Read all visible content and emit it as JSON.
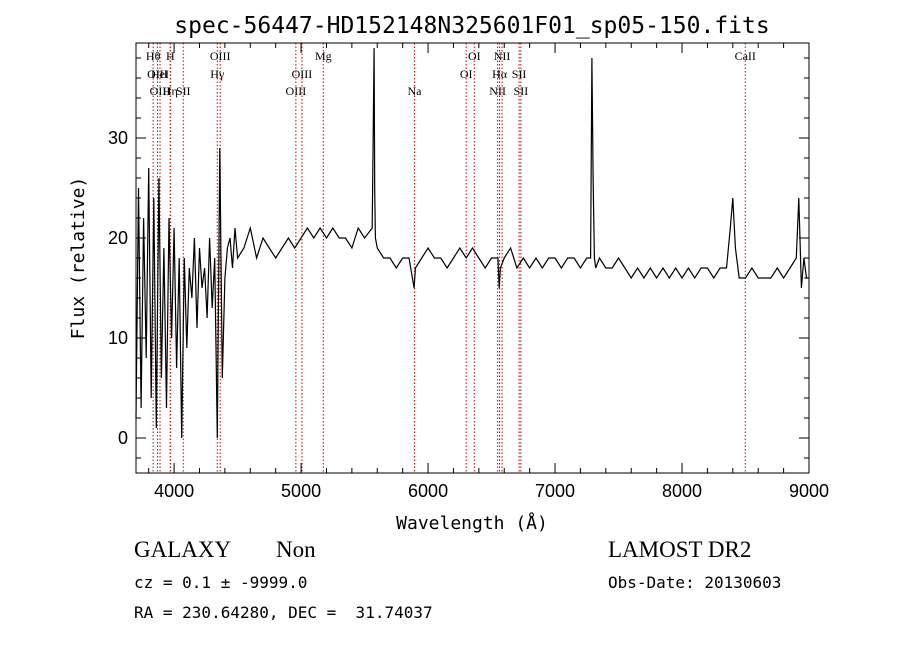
{
  "chart_data": {
    "type": "line",
    "title": "spec-56447-HD152148N325601F01_sp05-150.fits",
    "xlabel": "Wavelength (Å)",
    "ylabel": "Flux (relative)",
    "xlim": [
      3700,
      9000
    ],
    "ylim": [
      -3.5,
      39.5
    ],
    "xticks": [
      4000,
      5000,
      6000,
      7000,
      8000,
      9000
    ],
    "yticks": [
      0,
      10,
      20,
      30
    ],
    "grid": false,
    "series": [
      {
        "line_color": "#000000",
        "x": [
          3700,
          3720,
          3740,
          3760,
          3780,
          3800,
          3820,
          3840,
          3860,
          3880,
          3900,
          3920,
          3940,
          3960,
          3980,
          4000,
          4020,
          4040,
          4060,
          4080,
          4100,
          4120,
          4140,
          4160,
          4180,
          4200,
          4220,
          4240,
          4260,
          4280,
          4300,
          4320,
          4340,
          4360,
          4380,
          4400,
          4420,
          4440,
          4460,
          4480,
          4500,
          4550,
          4600,
          4650,
          4700,
          4750,
          4800,
          4850,
          4900,
          4950,
          5000,
          5050,
          5100,
          5150,
          5200,
          5250,
          5300,
          5350,
          5400,
          5450,
          5500,
          5560,
          5575,
          5580,
          5585,
          5600,
          5650,
          5700,
          5750,
          5800,
          5850,
          5890,
          5900,
          5950,
          6000,
          6050,
          6100,
          6150,
          6200,
          6250,
          6300,
          6350,
          6400,
          6450,
          6500,
          6550,
          6560,
          6570,
          6600,
          6650,
          6700,
          6750,
          6800,
          6850,
          6900,
          6950,
          7000,
          7050,
          7100,
          7150,
          7200,
          7250,
          7280,
          7290,
          7300,
          7310,
          7320,
          7350,
          7400,
          7450,
          7500,
          7550,
          7600,
          7650,
          7700,
          7750,
          7800,
          7850,
          7900,
          7950,
          8000,
          8050,
          8100,
          8150,
          8200,
          8250,
          8300,
          8350,
          8380,
          8400,
          8420,
          8450,
          8500,
          8550,
          8600,
          8650,
          8700,
          8750,
          8800,
          8850,
          8900,
          8920,
          8940,
          8960,
          8980,
          9000
        ],
        "y": [
          2,
          25,
          3,
          22,
          8,
          27,
          4,
          24,
          1,
          26,
          6,
          19,
          3,
          22,
          10,
          21,
          7,
          18,
          0,
          18,
          9,
          17,
          14,
          20,
          11,
          19,
          15,
          17,
          12,
          20,
          13,
          18,
          0,
          29,
          6,
          16,
          19,
          20,
          17,
          21,
          18,
          19,
          21,
          18,
          20,
          19,
          18,
          19,
          20,
          19,
          20,
          21,
          20,
          21,
          20,
          21,
          20,
          20,
          19,
          21,
          20,
          21,
          39,
          25,
          20,
          19,
          18,
          18,
          17,
          18,
          18,
          15,
          17,
          18,
          19,
          18,
          18,
          17,
          18,
          19,
          18,
          19,
          18,
          17,
          18,
          18,
          15,
          17,
          18,
          19,
          17,
          18,
          17,
          18,
          17,
          18,
          18,
          17,
          18,
          18,
          17,
          18,
          18,
          38,
          26,
          18,
          17,
          18,
          17,
          17,
          18,
          17,
          16,
          17,
          16,
          17,
          16,
          17,
          16,
          17,
          16,
          17,
          16,
          17,
          17,
          16,
          17,
          17,
          21,
          24,
          19,
          16,
          16,
          17,
          16,
          16,
          16,
          17,
          16,
          17,
          18,
          24,
          15,
          18,
          16,
          16
        ]
      }
    ],
    "emission_lines": [
      {
        "wave": 3835,
        "label": "Hθ",
        "row": 0
      },
      {
        "wave": 3869,
        "label": "OIII",
        "row": 1
      },
      {
        "wave": 3889,
        "label": "HeI",
        "row": 1
      },
      {
        "wave": 3889,
        "label": "OIII",
        "row": 2
      },
      {
        "wave": 3970,
        "label": "H",
        "row": 0
      },
      {
        "wave": 3970,
        "label": "Hη",
        "row": 2
      },
      {
        "wave": 4072,
        "label": "SII",
        "row": 2
      },
      {
        "wave": 4340,
        "label": "Hγ",
        "row": 1
      },
      {
        "wave": 4363,
        "label": "OIII",
        "row": 0
      },
      {
        "wave": 4959,
        "label": "OIII",
        "row": 2
      },
      {
        "wave": 5007,
        "label": "OIII",
        "row": 1
      },
      {
        "wave": 5175,
        "label": "Mg",
        "row": 0
      },
      {
        "wave": 5893,
        "label": "Na",
        "row": 2
      },
      {
        "wave": 6300,
        "label": "OI",
        "row": 1
      },
      {
        "wave": 6364,
        "label": "OI",
        "row": 0
      },
      {
        "wave": 6548,
        "label": "NII",
        "row": 2
      },
      {
        "wave": 6563,
        "label": "Hα",
        "row": 1
      },
      {
        "wave": 6583,
        "label": "NII",
        "row": 0
      },
      {
        "wave": 6717,
        "label": "SII",
        "row": 1
      },
      {
        "wave": 6731,
        "label": "SII",
        "row": 2
      },
      {
        "wave": 8498,
        "label": "CaII",
        "row": 0
      }
    ],
    "line_marker_color": "#cc0000"
  },
  "info": {
    "class_label": "GALAXY",
    "subclass_label": "Non",
    "survey_label": "LAMOST DR2",
    "cz_text": "cz = 0.1 ± -9999.0",
    "obs_date_text": "Obs-Date: 20130603",
    "radec_text": "RA = 230.64280, DEC =  31.74037"
  }
}
